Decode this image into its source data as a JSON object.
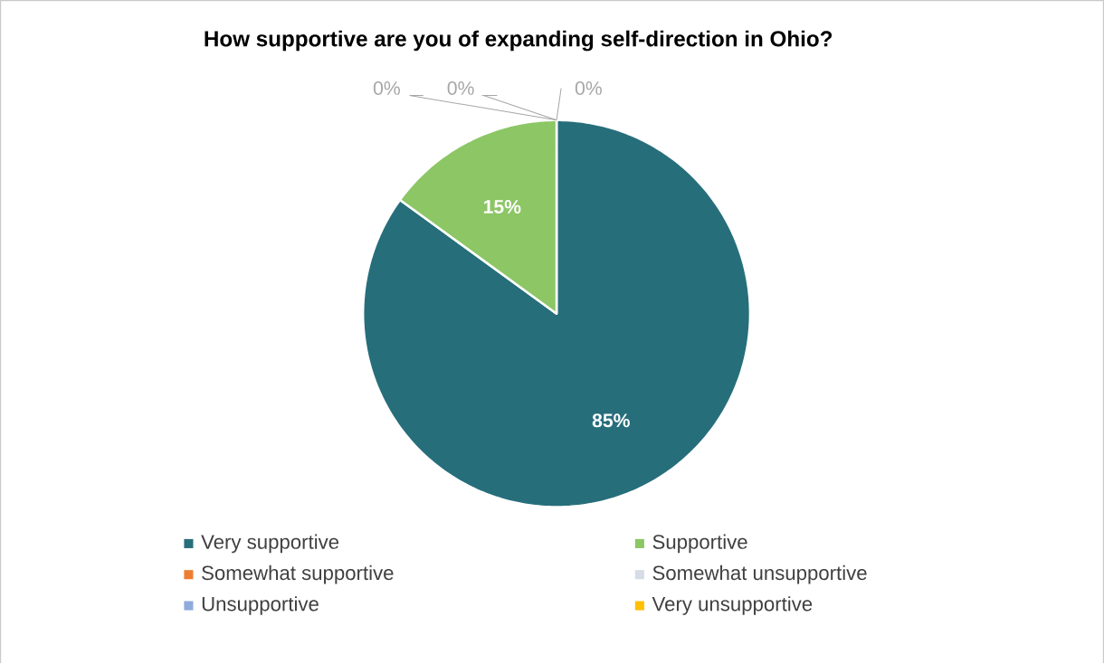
{
  "chart_data": {
    "type": "pie",
    "title": "How supportive are you of expanding self-direction in Ohio?",
    "categories": [
      "Very supportive",
      "Supportive",
      "Somewhat supportive",
      "Somewhat unsupportive",
      "Unsupportive",
      "Very unsupportive"
    ],
    "values": [
      85,
      15,
      0,
      0,
      0,
      0
    ],
    "colors": [
      "#276e7b",
      "#8cc665",
      "#ed7d31",
      "#d6dce5",
      "#8faadc",
      "#ffc000"
    ],
    "value_labels": [
      "85%",
      "15%",
      "0%",
      "0%",
      "0%",
      null
    ],
    "legend": "bottom"
  }
}
